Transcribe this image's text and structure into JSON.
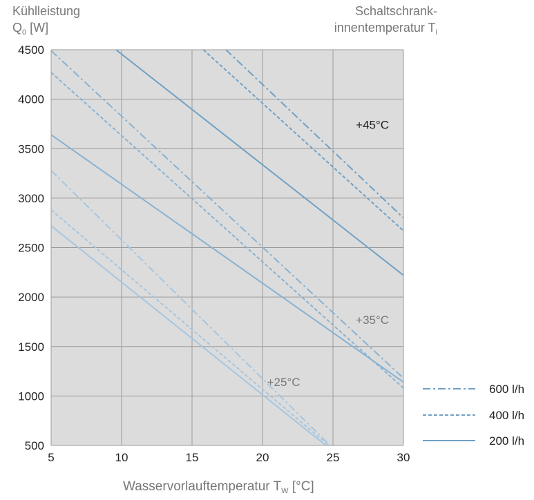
{
  "chart_data": {
    "type": "line",
    "title": "",
    "ylabel": {
      "line1": "Kühlleistung",
      "symbol": "Q",
      "sub": "0",
      "unit": "[W]"
    },
    "right_label": {
      "line1": "Schaltschrank-",
      "line2_text": "innentemperatur T",
      "line2_sub": "i"
    },
    "xlabel": {
      "text": "Wasservorlauftemperatur T",
      "sub": "W",
      "unit": "[°C]"
    },
    "xlim": [
      5,
      30
    ],
    "ylim": [
      500,
      4500
    ],
    "xticks": [
      "5",
      "10",
      "15",
      "20",
      "25",
      "30"
    ],
    "yticks": [
      "500",
      "1000",
      "1500",
      "2000",
      "2500",
      "3000",
      "3500",
      "4000",
      "4500"
    ],
    "grid": true,
    "legend_position": "right",
    "legend": [
      {
        "label": "600 l/h",
        "dash": "dashdot"
      },
      {
        "label": "400 l/h",
        "dash": "dashed"
      },
      {
        "label": "200 l/h",
        "dash": "solid"
      }
    ],
    "annotations": [
      {
        "text": "+45°C",
        "x": 27.8,
        "y": 3700
      },
      {
        "text": "+35°C",
        "x": 27.8,
        "y": 1730
      },
      {
        "text": "+25°C",
        "x": 21.5,
        "y": 1100
      }
    ],
    "series": [
      {
        "group": "+45°C",
        "flow": "600 l/h",
        "dash": "dashdot",
        "color": "#6fa1c6",
        "x": [
          17.4,
          30
        ],
        "y": [
          4500,
          2800
        ]
      },
      {
        "group": "+45°C",
        "flow": "400 l/h",
        "dash": "dashed",
        "color": "#6fa1c6",
        "x": [
          15.8,
          30
        ],
        "y": [
          4500,
          2670
        ]
      },
      {
        "group": "+45°C",
        "flow": "200 l/h",
        "dash": "solid",
        "color": "#6fa1c6",
        "x": [
          9.6,
          30
        ],
        "y": [
          4500,
          2220
        ]
      },
      {
        "group": "+35°C",
        "flow": "600 l/h",
        "dash": "dashdot",
        "color": "#88b2d2",
        "x": [
          5,
          30
        ],
        "y": [
          4490,
          1180
        ]
      },
      {
        "group": "+35°C",
        "flow": "400 l/h",
        "dash": "dashed",
        "color": "#88b2d2",
        "x": [
          5,
          30
        ],
        "y": [
          4270,
          1080
        ]
      },
      {
        "group": "+35°C",
        "flow": "200 l/h",
        "dash": "solid",
        "color": "#88b2d2",
        "x": [
          5,
          30
        ],
        "y": [
          3640,
          1140
        ]
      },
      {
        "group": "+25°C",
        "flow": "600 l/h",
        "dash": "dashdot",
        "color": "#a6c6e0",
        "x": [
          5,
          24.8
        ],
        "y": [
          3280,
          500
        ]
      },
      {
        "group": "+25°C",
        "flow": "400 l/h",
        "dash": "dashed",
        "color": "#a6c6e0",
        "x": [
          5,
          24.7
        ],
        "y": [
          2880,
          500
        ]
      },
      {
        "group": "+25°C",
        "flow": "200 l/h",
        "dash": "solid",
        "color": "#a6c6e0",
        "x": [
          5,
          24.5
        ],
        "y": [
          2720,
          500
        ]
      }
    ]
  }
}
